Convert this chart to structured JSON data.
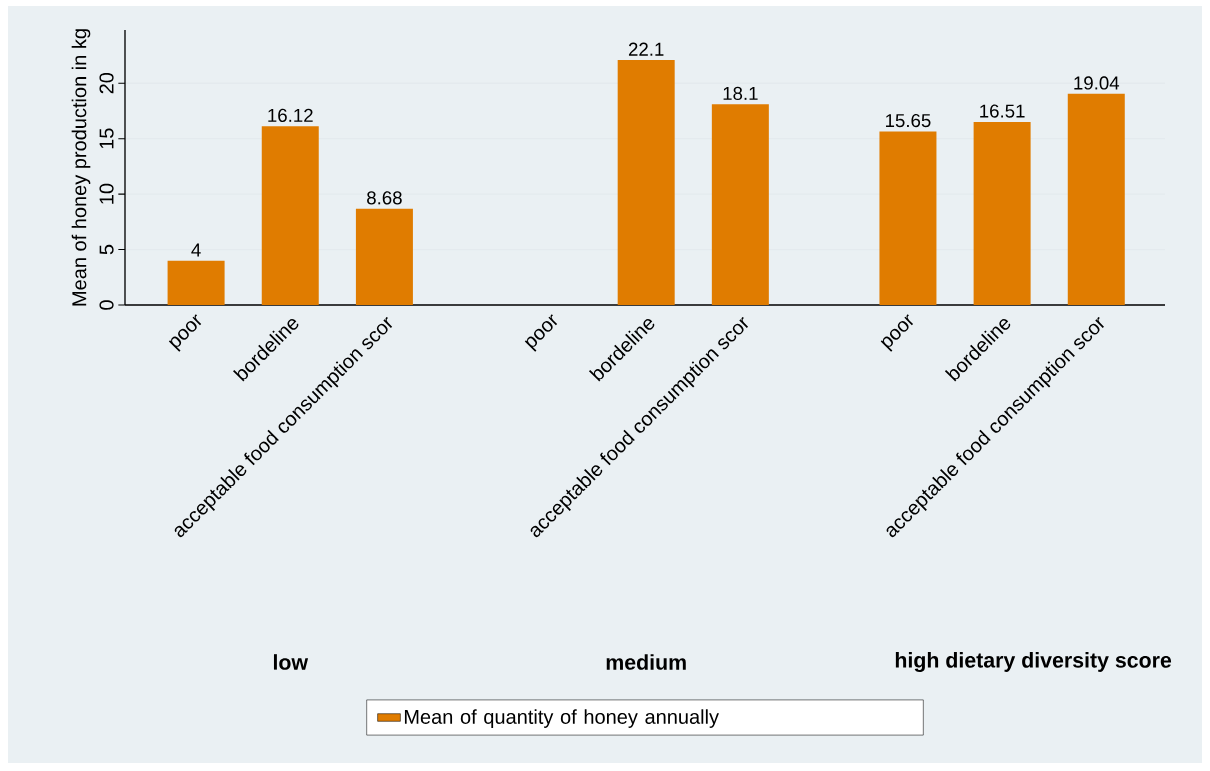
{
  "chart_data": {
    "type": "bar",
    "ylabel": "Mean of honey production in kg",
    "categories": [
      "poor",
      "bordeline",
      "acceptable food consumption scor",
      "poor",
      "bordeline",
      "acceptable food consumption scor",
      "poor",
      "bordeline",
      "acceptable food consumption scor"
    ],
    "series": [
      {
        "name": "Mean of quantity of honey annually",
        "color": "#e07c00",
        "values": [
          4,
          16.12,
          8.68,
          null,
          22.1,
          18.1,
          15.65,
          16.51,
          19.04
        ]
      }
    ],
    "annotations": [
      "low",
      "medium",
      "high dietary diversity score"
    ],
    "ylim": [
      0,
      24.8
    ],
    "yticks": [
      0,
      5,
      10,
      15,
      20
    ],
    "grid": "y",
    "legend": "bottom",
    "data_labels": true
  }
}
